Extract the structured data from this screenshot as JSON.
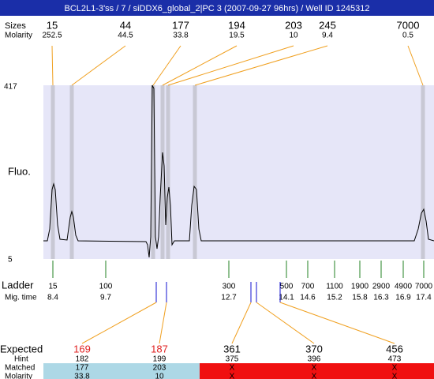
{
  "header": {
    "title": "BCL2L1-3'ss / 7 / siDDX6_global_2|PC 3 (2007-09-27 96hrs) / Well ID 1245312"
  },
  "peaks": {
    "size_label": "Sizes",
    "molarity_label": "Molarity",
    "sizes": [
      15,
      44,
      177,
      194,
      203,
      245,
      7000
    ],
    "molarity": [
      252.5,
      44.5,
      33.8,
      19.5,
      10,
      9.4,
      0.5
    ]
  },
  "plot": {
    "y_label": "Fluo.",
    "y_max": 417,
    "y_min": 5
  },
  "ladder": {
    "label": "Ladder",
    "time_label": "Mig. time",
    "sizes": [
      15,
      100,
      300,
      500,
      700,
      1100,
      1900,
      2900,
      4900,
      7000
    ],
    "times": [
      8.4,
      9.7,
      12.7,
      14.1,
      14.6,
      15.2,
      15.8,
      16.3,
      16.9,
      17.4
    ]
  },
  "expected": {
    "label": "Expected",
    "hint_label": "Hint",
    "matched_label": "Matched",
    "molarity_label": "Molarity",
    "values": [
      169,
      187,
      361,
      370,
      456
    ],
    "hints": [
      182,
      199,
      375,
      396,
      473
    ],
    "matched": [
      177,
      203,
      "X",
      "X",
      "X"
    ],
    "molarity": [
      33.8,
      10,
      "X",
      "X",
      "X"
    ]
  }
}
